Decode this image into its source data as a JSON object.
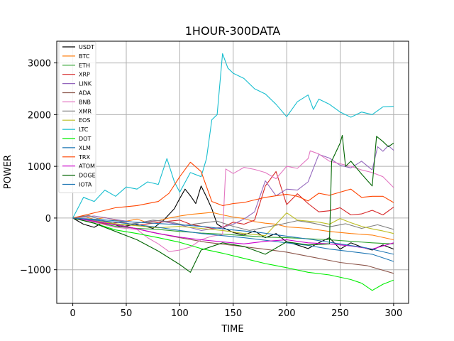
{
  "chart_data": {
    "type": "line",
    "title": "1HOUR-300DATA",
    "xlabel": "TIME",
    "ylabel": "POWER",
    "xlim": [
      -15,
      314
    ],
    "ylim": [
      -1650,
      3420
    ],
    "x_ticks": [
      0,
      50,
      100,
      150,
      200,
      250,
      300
    ],
    "y_ticks": [
      -1000,
      0,
      1000,
      2000,
      3000
    ],
    "x_tick_labels": [
      "0",
      "50",
      "100",
      "150",
      "200",
      "250",
      "300"
    ],
    "y_tick_labels": [
      "−1000",
      "0",
      "1000",
      "2000",
      "3000"
    ],
    "grid": true,
    "legend_position": "upper-left",
    "series": [
      {
        "name": "USDT",
        "color": "#000000",
        "x": [
          0,
          10,
          20,
          30,
          45,
          60,
          75,
          85,
          95,
          100,
          105,
          110,
          115,
          120,
          125,
          130,
          135,
          140,
          150,
          160,
          170,
          180,
          190,
          200,
          210,
          220,
          230,
          240,
          250,
          260,
          270,
          280,
          290,
          300
        ],
        "y": [
          0,
          -120,
          -180,
          -60,
          -170,
          -120,
          -200,
          -40,
          180,
          380,
          560,
          430,
          280,
          620,
          410,
          180,
          -120,
          -180,
          -280,
          -330,
          -250,
          -380,
          -300,
          -460,
          -520,
          -590,
          -480,
          -380,
          -600,
          -480,
          -560,
          -620,
          -520,
          -600
        ]
      },
      {
        "name": "BTC",
        "color": "#ff7f0e",
        "x": [
          0,
          10,
          20,
          30,
          40,
          50,
          60,
          70,
          80,
          90,
          100,
          110,
          120,
          130,
          140,
          150,
          160,
          170,
          180,
          190,
          200,
          220,
          240,
          260,
          280,
          300
        ],
        "y": [
          0,
          40,
          -30,
          10,
          -40,
          -60,
          -20,
          -90,
          -50,
          0,
          40,
          70,
          90,
          110,
          60,
          20,
          -10,
          -70,
          -100,
          -120,
          -170,
          -200,
          -260,
          -300,
          -330,
          -420
        ]
      },
      {
        "name": "ETH",
        "color": "#2ca02c",
        "x": [
          0,
          20,
          40,
          60,
          80,
          100,
          120,
          140,
          160,
          180,
          200,
          220,
          240,
          260,
          280,
          300
        ],
        "y": [
          0,
          -80,
          -160,
          -200,
          -220,
          -260,
          -290,
          -310,
          -340,
          -370,
          -380,
          -400,
          -420,
          -450,
          -480,
          -500
        ]
      },
      {
        "name": "XRP",
        "color": "#d62728",
        "x": [
          0,
          15,
          30,
          45,
          60,
          75,
          90,
          100,
          110,
          120,
          130,
          140,
          150,
          160,
          170,
          180,
          190,
          200,
          210,
          220,
          230,
          240,
          250,
          260,
          270,
          280,
          290,
          300
        ],
        "y": [
          0,
          -40,
          -120,
          -80,
          -140,
          -100,
          -60,
          -40,
          -120,
          -160,
          -200,
          -180,
          -80,
          -120,
          -40,
          620,
          900,
          260,
          470,
          280,
          120,
          140,
          200,
          60,
          80,
          150,
          60,
          210
        ]
      },
      {
        "name": "LINK",
        "color": "#9467bd",
        "x": [
          0,
          20,
          40,
          60,
          80,
          100,
          120,
          130,
          140,
          150,
          160,
          170,
          180,
          190,
          200,
          210,
          220,
          230,
          240,
          250,
          260,
          270,
          280,
          285,
          290,
          295,
          300
        ],
        "y": [
          0,
          40,
          -30,
          -90,
          -50,
          -130,
          -240,
          -210,
          -180,
          -120,
          -20,
          120,
          720,
          430,
          560,
          540,
          700,
          1230,
          1160,
          1020,
          970,
          1100,
          930,
          1380,
          1290,
          1400,
          1310
        ]
      },
      {
        "name": "ADA",
        "color": "#8c564b",
        "x": [
          0,
          25,
          50,
          75,
          100,
          125,
          150,
          175,
          200,
          225,
          250,
          275,
          300
        ],
        "y": [
          0,
          -90,
          -160,
          -280,
          -380,
          -470,
          -530,
          -590,
          -660,
          -760,
          -860,
          -920,
          -1070
        ]
      },
      {
        "name": "BNB",
        "color": "#e377c2",
        "x": [
          0,
          20,
          40,
          60,
          70,
          80,
          90,
          100,
          110,
          120,
          130,
          140,
          143,
          150,
          160,
          170,
          180,
          190,
          200,
          210,
          220,
          222,
          230,
          240,
          250,
          260,
          270,
          280,
          290,
          300
        ],
        "y": [
          0,
          -80,
          -180,
          -220,
          -380,
          -500,
          -650,
          -620,
          -560,
          -420,
          -350,
          -320,
          950,
          860,
          980,
          940,
          880,
          760,
          1000,
          960,
          1150,
          1300,
          1240,
          1100,
          1050,
          1000,
          930,
          880,
          800,
          590
        ]
      },
      {
        "name": "XMR",
        "color": "#7f7f7f",
        "x": [
          0,
          15,
          30,
          45,
          60,
          75,
          90,
          105,
          120,
          135,
          150,
          165,
          180,
          195,
          210,
          225,
          240,
          255,
          270,
          285,
          300
        ],
        "y": [
          0,
          50,
          -60,
          -140,
          -100,
          -40,
          -70,
          -140,
          -100,
          -60,
          -160,
          -240,
          -180,
          -120,
          -50,
          -100,
          -170,
          -110,
          -200,
          -130,
          -220
        ]
      },
      {
        "name": "EOS",
        "color": "#bcbd22",
        "x": [
          0,
          20,
          40,
          60,
          80,
          100,
          120,
          140,
          160,
          180,
          200,
          210,
          220,
          230,
          240,
          250,
          260,
          270,
          280,
          290,
          300
        ],
        "y": [
          0,
          -50,
          -110,
          -150,
          -190,
          -160,
          -200,
          -240,
          -300,
          -340,
          100,
          -40,
          -60,
          -80,
          -120,
          -10,
          -90,
          -160,
          -210,
          -250,
          -300
        ]
      },
      {
        "name": "LTC",
        "color": "#17becf",
        "x": [
          0,
          5,
          10,
          20,
          30,
          40,
          50,
          60,
          70,
          80,
          88,
          95,
          100,
          110,
          120,
          125,
          130,
          135,
          140,
          145,
          150,
          160,
          170,
          180,
          190,
          200,
          210,
          220,
          225,
          230,
          240,
          250,
          260,
          270,
          280,
          290,
          300
        ],
        "y": [
          0,
          200,
          400,
          320,
          540,
          420,
          600,
          560,
          700,
          650,
          1150,
          700,
          500,
          880,
          800,
          1150,
          1900,
          2000,
          3180,
          2900,
          2800,
          2700,
          2500,
          2400,
          2200,
          1960,
          2250,
          2380,
          2100,
          2300,
          2200,
          2050,
          1950,
          2050,
          2000,
          2150,
          2160
        ]
      },
      {
        "name": "DOT",
        "color": "#00ee00",
        "x": [
          0,
          20,
          40,
          60,
          80,
          100,
          120,
          140,
          160,
          180,
          200,
          220,
          240,
          260,
          270,
          280,
          290,
          300
        ],
        "y": [
          0,
          -100,
          -230,
          -300,
          -380,
          -470,
          -590,
          -680,
          -780,
          -880,
          -960,
          -1050,
          -1100,
          -1190,
          -1260,
          -1400,
          -1280,
          -1200
        ]
      },
      {
        "name": "XLM",
        "color": "#1f77b4",
        "x": [
          0,
          20,
          40,
          60,
          80,
          100,
          120,
          140,
          160,
          180,
          200,
          220,
          240,
          260,
          280,
          300
        ],
        "y": [
          0,
          -40,
          -80,
          -130,
          -180,
          -240,
          -300,
          -340,
          -380,
          -430,
          -480,
          -530,
          -600,
          -650,
          -700,
          -840
        ]
      },
      {
        "name": "TRX",
        "color": "#ff4500",
        "x": [
          0,
          20,
          40,
          60,
          80,
          90,
          100,
          110,
          120,
          130,
          140,
          150,
          160,
          170,
          180,
          190,
          200,
          210,
          220,
          230,
          240,
          250,
          260,
          270,
          280,
          290,
          300
        ],
        "y": [
          0,
          100,
          200,
          240,
          320,
          480,
          800,
          1080,
          900,
          320,
          240,
          280,
          300,
          350,
          400,
          430,
          460,
          420,
          330,
          480,
          440,
          500,
          560,
          400,
          420,
          420,
          300
        ]
      },
      {
        "name": "ATOM",
        "color": "#cc00cc",
        "x": [
          0,
          20,
          40,
          60,
          80,
          100,
          120,
          140,
          160,
          180,
          200,
          220,
          240,
          260,
          280,
          300
        ],
        "y": [
          0,
          -60,
          -130,
          -210,
          -300,
          -370,
          -420,
          -460,
          -500,
          -450,
          -420,
          -480,
          -500,
          -540,
          -600,
          -480
        ]
      },
      {
        "name": "DOGE",
        "color": "#006400",
        "x": [
          0,
          20,
          40,
          60,
          80,
          100,
          110,
          120,
          140,
          160,
          180,
          200,
          220,
          240,
          242,
          250,
          252,
          255,
          260,
          270,
          280,
          284,
          290,
          295,
          300
        ],
        "y": [
          0,
          -100,
          -260,
          -420,
          -640,
          -900,
          -1050,
          -620,
          -480,
          -550,
          -700,
          -460,
          -520,
          -500,
          1100,
          1450,
          1600,
          1000,
          1100,
          850,
          620,
          1580,
          1480,
          1380,
          1450
        ]
      },
      {
        "name": "IOTA",
        "color": "#1f77b4",
        "x": [
          0,
          25,
          50,
          75,
          100,
          125,
          150,
          175,
          200,
          225,
          250,
          275,
          300
        ],
        "y": [
          0,
          -30,
          -70,
          -100,
          -130,
          -170,
          -230,
          -280,
          -350,
          -420,
          -500,
          -580,
          -700
        ]
      }
    ]
  }
}
